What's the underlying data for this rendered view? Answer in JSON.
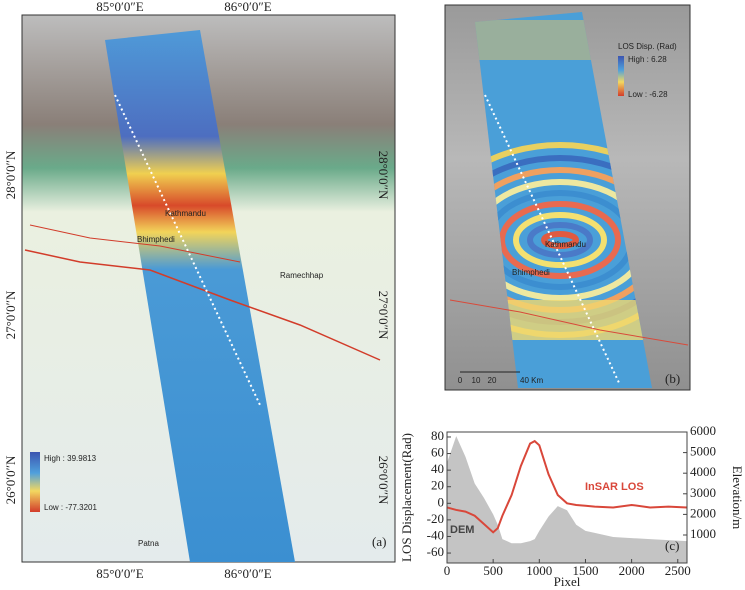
{
  "map_a": {
    "lon_labels": [
      "85°0′0″E",
      "86°0′0″E"
    ],
    "lat_labels": [
      "28°0′0″N",
      "27°0′0″N",
      "26°0′0″N"
    ],
    "legend": {
      "high": "High : 39.9813",
      "low": "Low : -77.3201"
    },
    "places": [
      "Kathmandu",
      "Bhimphedi",
      "Ramechhap",
      "Patna"
    ],
    "panel_label": "(a)"
  },
  "map_b": {
    "legend": {
      "title": "LOS Disp. (Rad)",
      "high": "High : 6.28",
      "low": "Low : -6.28"
    },
    "places": [
      "Kathmandu",
      "Bhimphedi"
    ],
    "scale": [
      "0",
      "10",
      "20",
      "40 Km"
    ],
    "panel_label": "(b)"
  },
  "chart_data": {
    "type": "line",
    "x_label": "Pixel",
    "y_label": "LOS Displacement(Rad)",
    "y2_label": "Elevation/m",
    "panel_label": "(c)",
    "x": [
      0,
      100,
      200,
      300,
      400,
      500,
      550,
      600,
      700,
      800,
      900,
      950,
      1000,
      1100,
      1200,
      1300,
      1400,
      1500,
      1600,
      1800,
      2000,
      2200,
      2400,
      2600
    ],
    "series": [
      {
        "name": "InSAR LOS",
        "color": "#d9473a",
        "values": [
          -5,
          -8,
          -10,
          -15,
          -25,
          -35,
          -30,
          -15,
          10,
          45,
          72,
          75,
          70,
          35,
          10,
          0,
          -2,
          -3,
          -4,
          -5,
          -2,
          -5,
          -4,
          -5
        ]
      },
      {
        "name": "DEM",
        "color": "#c4c4c4",
        "axis": "y2",
        "values": [
          4500,
          5800,
          4800,
          3500,
          2800,
          2000,
          1500,
          800,
          600,
          600,
          700,
          800,
          1200,
          1900,
          2400,
          2200,
          1500,
          1200,
          1100,
          900,
          850,
          800,
          750,
          700
        ]
      }
    ],
    "xlim": [
      0,
      2600
    ],
    "xticks": [
      0,
      500,
      1000,
      1500,
      2000,
      2500
    ],
    "ylim": [
      -72,
      86
    ],
    "yticks": [
      -60,
      -40,
      -20,
      0,
      20,
      40,
      60,
      80
    ],
    "y2lim": [
      -360,
      6000
    ],
    "y2ticks": [
      1000,
      2000,
      3000,
      4000,
      5000,
      6000
    ]
  }
}
